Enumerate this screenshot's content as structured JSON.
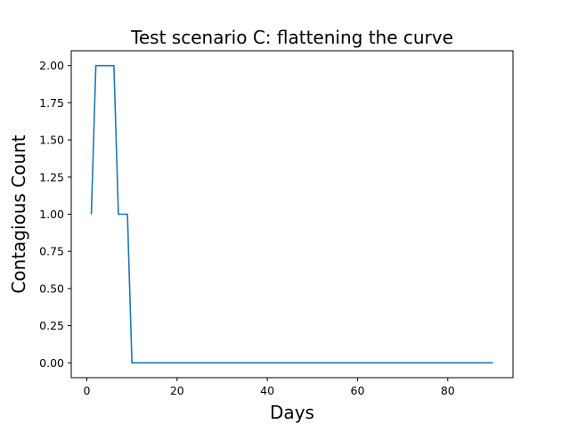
{
  "chart_data": {
    "type": "line",
    "title": "Test scenario C: flattening the curve",
    "xlabel": "Days",
    "ylabel": "Contagious Count",
    "xlim": [
      -3.45,
      94.45
    ],
    "ylim": [
      -0.1,
      2.1
    ],
    "xticks": [
      0,
      20,
      40,
      60,
      80
    ],
    "xtick_labels": [
      "0",
      "20",
      "40",
      "60",
      "80"
    ],
    "yticks": [
      0.0,
      0.25,
      0.5,
      0.75,
      1.0,
      1.25,
      1.5,
      1.75,
      2.0
    ],
    "ytick_labels": [
      "0.00",
      "0.25",
      "0.50",
      "0.75",
      "1.00",
      "1.25",
      "1.50",
      "1.75",
      "2.00"
    ],
    "grid": false,
    "series": [
      {
        "color": "#1f77b4",
        "x": [
          1,
          2,
          3,
          4,
          5,
          6,
          7,
          8,
          9,
          10,
          90
        ],
        "y": [
          1,
          2,
          2,
          2,
          2,
          2,
          1,
          1,
          1,
          0,
          0
        ]
      }
    ]
  }
}
